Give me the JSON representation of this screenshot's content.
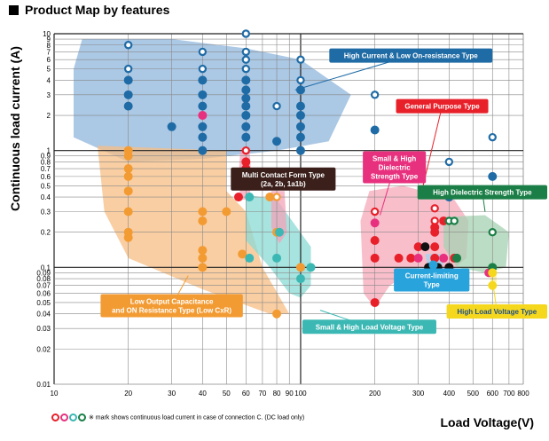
{
  "header": {
    "title": "Product Map by features"
  },
  "footnote": "※ mark shows continuous load current in case of connection C. (DC load only)",
  "chart_data": {
    "type": "scatter",
    "title": "Product Map by features",
    "xlabel": "Load Voltage(V)",
    "ylabel": "Continuous load current (A)",
    "x_ticks": [
      10,
      20,
      30,
      40,
      50,
      60,
      70,
      80,
      90,
      100,
      200,
      300,
      400,
      500,
      600,
      700,
      800
    ],
    "y_ticks": [
      0.01,
      0.02,
      0.03,
      0.04,
      0.05,
      0.06,
      0.07,
      0.08,
      0.09,
      0.1,
      0.2,
      0.3,
      0.4,
      0.5,
      0.6,
      0.7,
      0.8,
      0.9,
      1,
      2,
      3,
      4,
      5,
      6,
      7,
      8,
      9,
      10
    ],
    "x_tick_labels": [
      "10",
      "20",
      "30",
      "40",
      "50",
      "60",
      "70",
      "80",
      "90",
      "100",
      "200",
      "300",
      "400",
      "500",
      "600",
      "700",
      "800"
    ],
    "y_tick_labels": [
      "0.01",
      "0.02",
      "0.03",
      "0.04",
      "0.05",
      "0.06",
      "0.07",
      "0.08",
      "0.09",
      "0.1",
      "0.2",
      "0.3",
      "0.4",
      "0.5",
      "0.6",
      "0.7",
      "0.8",
      "0.9",
      "1",
      "2",
      "3",
      "4",
      "5",
      "6",
      "7",
      "8",
      "9",
      "10"
    ],
    "grid": true,
    "colors": {
      "blue": "#1f6ba5",
      "orange": "#f39b33",
      "teal": "#3cb8b4",
      "pink": "#e8317e",
      "red": "#e8202a",
      "black": "#111111",
      "green": "#1a7e46",
      "yellow": "#f5d81e",
      "sky": "#29a3dc",
      "brown": "#3a1f1a"
    },
    "regions": [
      {
        "name": "High Current & Low On-resistance Type",
        "color": "#8fb6dc",
        "label_color": "#1f6ba5",
        "polygon": [
          [
            13,
            9
          ],
          [
            30,
            9
          ],
          [
            60,
            7.5
          ],
          [
            100,
            6
          ],
          [
            160,
            3
          ],
          [
            130,
            1.2
          ],
          [
            80,
            1
          ],
          [
            40,
            0.85
          ],
          [
            20,
            0.8
          ],
          [
            12,
            1.3
          ],
          [
            12,
            5
          ]
        ]
      },
      {
        "name": "Low Output Capacitance and ON Resistance Type (Low CxR)",
        "color": "#f7bd83",
        "label_color": "#f39b33",
        "polygon": [
          [
            15,
            1.1
          ],
          [
            50,
            1.0
          ],
          [
            50,
            0.45
          ],
          [
            60,
            0.3
          ],
          [
            70,
            0.1
          ],
          [
            90,
            0.04
          ],
          [
            75,
            0.04
          ],
          [
            40,
            0.065
          ],
          [
            20,
            0.12
          ],
          [
            16,
            0.3
          ]
        ]
      },
      {
        "name": "Small & High Load Voltage Type",
        "color": "#8ad9d4",
        "label_color": "#3cb8b4",
        "polygon": [
          [
            60,
            0.42
          ],
          [
            80,
            0.38
          ],
          [
            110,
            0.15
          ],
          [
            110,
            0.07
          ],
          [
            100,
            0.055
          ],
          [
            90,
            0.06
          ],
          [
            75,
            0.1
          ],
          [
            60,
            0.17
          ]
        ]
      },
      {
        "name": "Multi Contact Form Type (2a, 2b, 1a1b)",
        "color": "#f3a3b8",
        "label_color": "#3a1f1a",
        "polygon": [
          [
            57,
            1.05
          ],
          [
            62,
            1.05
          ],
          [
            63,
            0.6
          ],
          [
            62,
            0.38
          ],
          [
            57,
            0.38
          ],
          [
            56,
            0.6
          ]
        ]
      },
      {
        "name": "Multi Contact Form Type (2a, 2b, 1a1b)",
        "color": "#f3a3b8",
        "label_color": "#3a1f1a",
        "polygon": [
          [
            76,
            0.45
          ],
          [
            86,
            0.45
          ],
          [
            88,
            0.2
          ],
          [
            82,
            0.16
          ],
          [
            76,
            0.22
          ]
        ]
      },
      {
        "name": "General Purpose Type",
        "color": "#f5a9b9",
        "label_color": "#e8202a",
        "polygon": [
          [
            190,
            0.45
          ],
          [
            260,
            0.5
          ],
          [
            420,
            0.38
          ],
          [
            480,
            0.25
          ],
          [
            470,
            0.12
          ],
          [
            400,
            0.09
          ],
          [
            300,
            0.1
          ],
          [
            230,
            0.07
          ],
          [
            200,
            0.045
          ],
          [
            180,
            0.06
          ],
          [
            175,
            0.25
          ]
        ]
      },
      {
        "name": "High Dielectric Strength Type",
        "color": "#a6d1b1",
        "label_color": "#1a7e46",
        "polygon": [
          [
            380,
            0.27
          ],
          [
            560,
            0.28
          ],
          [
            700,
            0.2
          ],
          [
            680,
            0.1
          ],
          [
            560,
            0.09
          ],
          [
            430,
            0.1
          ],
          [
            380,
            0.15
          ]
        ]
      },
      {
        "name": "Current-limiting Type",
        "color": "#9fd4ef",
        "label_color": "#29a3dc",
        "polygon": [
          [
            320,
            0.13
          ],
          [
            370,
            0.13
          ],
          [
            380,
            0.105
          ],
          [
            330,
            0.095
          ]
        ]
      },
      {
        "name": "High Load Voltage Type",
        "color": "#fbee8a",
        "label_color": "#f5d81e",
        "polygon": [
          [
            585,
            0.095
          ],
          [
            620,
            0.095
          ],
          [
            625,
            0.075
          ],
          [
            590,
            0.075
          ]
        ]
      }
    ],
    "labels": [
      {
        "text": [
          "High Current & Low On-resistance Type"
        ],
        "bg": "#1f6ba5",
        "fg": "#ffffff",
        "at": [
          280,
          6.5
        ],
        "leader_to": [
          95,
          3.3
        ]
      },
      {
        "text": [
          "General Purpose Type"
        ],
        "bg": "#e8202a",
        "fg": "#ffffff",
        "at": [
          375,
          2.4
        ],
        "leader_to": [
          310,
          0.45
        ]
      },
      {
        "text": [
          "Small & High",
          "Dielectric",
          "Strength Type"
        ],
        "bg": "#e8317e",
        "fg": "#ffffff",
        "at": [
          240,
          0.72
        ],
        "leader_to": [
          210,
          0.28
        ]
      },
      {
        "text": [
          "Multi Contact Form Type",
          "(2a, 2b, 1a1b)"
        ],
        "bg": "#3a1f1a",
        "fg": "#ffffff",
        "at": [
          85,
          0.57
        ],
        "leader_to": [
          70,
          0.5
        ]
      },
      {
        "text": [
          "High Dielectric Strength Type"
        ],
        "bg": "#1a7e46",
        "fg": "#ffffff",
        "at": [
          620,
          0.44
        ],
        "leader_to": [
          560,
          0.3
        ]
      },
      {
        "text": [
          "Current-limiting",
          "Type"
        ],
        "bg": "#29a3dc",
        "fg": "#ffffff",
        "at": [
          340,
          0.078
        ],
        "leader_to": [
          345,
          0.105
        ]
      },
      {
        "text": [
          "Low Output Capacitance",
          "and ON Resistance Type (Low CxR)"
        ],
        "bg": "#f39b33",
        "fg": "#ffffff",
        "at": [
          30,
          0.047
        ],
        "leader_to": [
          35,
          0.085
        ]
      },
      {
        "text": [
          "Small & High Load Voltage Type"
        ],
        "bg": "#3cb8b4",
        "fg": "#ffffff",
        "at": [
          190,
          0.031
        ],
        "leader_to": [
          120,
          0.043
        ]
      },
      {
        "text": [
          "High Load Voltage Type"
        ],
        "bg": "#f5d81e",
        "fg": "#1f4f8a",
        "at": [
          640,
          0.042
        ],
        "leader_to": [
          600,
          0.078
        ]
      }
    ],
    "points": [
      [
        20,
        8,
        "blue",
        true
      ],
      [
        20,
        5,
        "blue",
        true
      ],
      [
        20,
        4,
        "blue",
        false
      ],
      [
        20,
        3,
        "blue",
        false
      ],
      [
        20,
        2.4,
        "blue",
        false
      ],
      [
        30,
        1.6,
        "blue",
        false
      ],
      [
        40,
        7,
        "blue",
        true
      ],
      [
        40,
        5,
        "blue",
        true
      ],
      [
        40,
        4,
        "blue",
        false
      ],
      [
        40,
        3,
        "blue",
        false
      ],
      [
        40,
        2.4,
        "blue",
        false
      ],
      [
        40,
        1.6,
        "blue",
        false
      ],
      [
        40,
        1.3,
        "blue",
        false
      ],
      [
        40,
        1.0,
        "blue",
        false
      ],
      [
        60,
        10,
        "blue",
        true
      ],
      [
        60,
        7,
        "blue",
        true
      ],
      [
        60,
        6,
        "blue",
        true
      ],
      [
        60,
        5,
        "blue",
        true
      ],
      [
        60,
        4,
        "blue",
        false
      ],
      [
        60,
        3.3,
        "blue",
        false
      ],
      [
        60,
        2.8,
        "blue",
        false
      ],
      [
        60,
        2.4,
        "blue",
        false
      ],
      [
        60,
        2,
        "blue",
        false
      ],
      [
        60,
        1.6,
        "blue",
        false
      ],
      [
        60,
        1.3,
        "blue",
        false
      ],
      [
        80,
        2.4,
        "blue",
        true
      ],
      [
        80,
        1.2,
        "blue",
        false
      ],
      [
        100,
        6,
        "blue",
        true
      ],
      [
        100,
        4,
        "blue",
        true
      ],
      [
        100,
        3.3,
        "blue",
        false
      ],
      [
        100,
        2.4,
        "blue",
        false
      ],
      [
        100,
        2,
        "blue",
        false
      ],
      [
        100,
        1.6,
        "blue",
        false
      ],
      [
        100,
        1.3,
        "blue",
        false
      ],
      [
        100,
        1.0,
        "blue",
        false
      ],
      [
        200,
        3,
        "blue",
        true
      ],
      [
        200,
        1.5,
        "blue",
        false
      ],
      [
        400,
        0.8,
        "blue",
        true
      ],
      [
        400,
        0.4,
        "blue",
        false
      ],
      [
        600,
        1.3,
        "blue",
        true
      ],
      [
        600,
        0.6,
        "blue",
        false
      ],
      [
        40,
        2,
        "pink",
        false
      ],
      [
        20,
        1.0,
        "orange",
        false
      ],
      [
        20,
        0.9,
        "orange",
        false
      ],
      [
        20,
        0.7,
        "orange",
        false
      ],
      [
        20,
        0.6,
        "orange",
        false
      ],
      [
        20,
        0.45,
        "orange",
        false
      ],
      [
        20,
        0.3,
        "orange",
        false
      ],
      [
        20,
        0.2,
        "orange",
        false
      ],
      [
        20,
        0.18,
        "orange",
        false
      ],
      [
        40,
        0.3,
        "orange",
        false
      ],
      [
        40,
        0.25,
        "orange",
        false
      ],
      [
        40,
        0.14,
        "orange",
        false
      ],
      [
        40,
        0.12,
        "orange",
        false
      ],
      [
        40,
        0.1,
        "orange",
        false
      ],
      [
        50,
        0.3,
        "orange",
        false
      ],
      [
        58,
        0.13,
        "orange",
        false
      ],
      [
        75,
        0.4,
        "orange",
        false
      ],
      [
        80,
        0.4,
        "orange",
        true
      ],
      [
        80,
        0.2,
        "orange",
        false
      ],
      [
        80,
        0.04,
        "orange",
        false
      ],
      [
        100,
        0.1,
        "orange",
        false
      ],
      [
        80,
        0.12,
        "teal",
        false
      ],
      [
        62,
        0.12,
        "teal",
        false
      ],
      [
        62,
        0.4,
        "teal",
        false
      ],
      [
        82,
        0.2,
        "teal",
        false
      ],
      [
        100,
        0.08,
        "teal",
        false
      ],
      [
        110,
        0.1,
        "teal",
        false
      ],
      [
        60,
        1.0,
        "red",
        true
      ],
      [
        60,
        0.8,
        "red",
        false
      ],
      [
        60,
        0.7,
        "red",
        false
      ],
      [
        56,
        0.5,
        "red",
        false
      ],
      [
        56,
        0.4,
        "red",
        false
      ],
      [
        65,
        0.5,
        "black",
        false
      ],
      [
        200,
        0.3,
        "red",
        true
      ],
      [
        200,
        0.17,
        "red",
        false
      ],
      [
        200,
        0.12,
        "red",
        false
      ],
      [
        200,
        0.05,
        "red",
        false
      ],
      [
        250,
        0.12,
        "red",
        false
      ],
      [
        280,
        0.12,
        "red",
        false
      ],
      [
        300,
        0.15,
        "red",
        false
      ],
      [
        350,
        0.32,
        "red",
        true
      ],
      [
        350,
        0.25,
        "red",
        true
      ],
      [
        350,
        0.22,
        "red",
        false
      ],
      [
        350,
        0.2,
        "red",
        false
      ],
      [
        350,
        0.15,
        "red",
        false
      ],
      [
        350,
        0.12,
        "red",
        false
      ],
      [
        380,
        0.25,
        "red",
        false
      ],
      [
        400,
        0.1,
        "red",
        false
      ],
      [
        420,
        0.12,
        "red",
        false
      ],
      [
        320,
        0.15,
        "black",
        false
      ],
      [
        330,
        0.1,
        "black",
        false
      ],
      [
        360,
        0.1,
        "black",
        false
      ],
      [
        400,
        0.1,
        "black",
        false
      ],
      [
        200,
        0.24,
        "pink",
        false
      ],
      [
        300,
        0.12,
        "pink",
        false
      ],
      [
        380,
        0.12,
        "pink",
        false
      ],
      [
        580,
        0.09,
        "pink",
        false
      ],
      [
        400,
        0.25,
        "green",
        true
      ],
      [
        420,
        0.25,
        "green",
        true
      ],
      [
        430,
        0.12,
        "green",
        false
      ],
      [
        600,
        0.2,
        "green",
        true
      ],
      [
        600,
        0.1,
        "green",
        false
      ],
      [
        345,
        0.105,
        "sky",
        false
      ],
      [
        600,
        0.09,
        "yellow",
        false
      ],
      [
        600,
        0.07,
        "yellow",
        false
      ]
    ],
    "footnote_circles": [
      "red",
      "pink",
      "teal",
      "green"
    ]
  }
}
